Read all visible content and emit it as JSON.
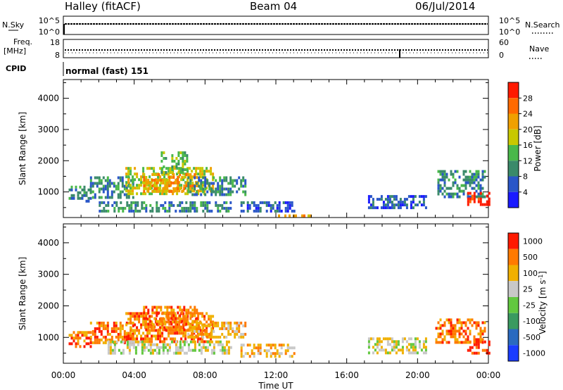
{
  "header": {
    "title_left": "Halley (fitACF)",
    "title_center": "Beam 04",
    "title_right": "06/Jul/2014"
  },
  "top_panels": {
    "nsky_label": "N.Sky",
    "nsearch_label": "N.Search",
    "nsky_ticks": [
      "10^5",
      "10^0"
    ],
    "nsearch_ticks": [
      "10^5",
      "10^0"
    ],
    "freq_label_1": "Freq.",
    "freq_label_2": "[MHz]",
    "freq_ticks": [
      "18",
      "8"
    ],
    "nave_label": "Nave",
    "nave_ticks": [
      "60",
      "0"
    ],
    "cpid_label": "CPID",
    "cpid_value": "normal (fast) 151"
  },
  "chart_data": [
    {
      "type": "heatmap",
      "name": "power-panel",
      "ylabel": "Slant Range [km]",
      "y_ticks": [
        1000,
        2000,
        3000,
        4000
      ],
      "ylim": [
        180,
        4600
      ],
      "xlim": [
        0,
        24
      ],
      "colorbar_label": "Power [dB]",
      "colorbar_ticks": [
        "4",
        "8",
        "12",
        "16",
        "20",
        "24",
        "28"
      ],
      "colorbar_colors": [
        "#1a1aff",
        "#2a56c8",
        "#3a8a6a",
        "#49b84a",
        "#c8c800",
        "#f0a000",
        "#ff6a00",
        "#ff1a00"
      ],
      "regions": [
        {
          "t0": 0.3,
          "t1": 1.5,
          "r0": 700,
          "r1": 1200,
          "level": 2
        },
        {
          "t0": 1.5,
          "t1": 4.0,
          "r0": 800,
          "r1": 1500,
          "level": 2
        },
        {
          "t0": 3.5,
          "t1": 8.5,
          "r0": 900,
          "r1": 1800,
          "level": 4
        },
        {
          "t0": 4.5,
          "t1": 7.5,
          "r0": 1000,
          "r1": 1600,
          "level": 5
        },
        {
          "t0": 5.5,
          "t1": 7.0,
          "r0": 1600,
          "r1": 2300,
          "level": 3
        },
        {
          "t0": 7.0,
          "t1": 10.3,
          "r0": 900,
          "r1": 1500,
          "level": 2
        },
        {
          "t0": 2.0,
          "t1": 9.5,
          "r0": 400,
          "r1": 700,
          "level": 2
        },
        {
          "t0": 10.0,
          "t1": 13.0,
          "r0": 400,
          "r1": 700,
          "level": 1
        },
        {
          "t0": 12.0,
          "t1": 14.0,
          "r0": 200,
          "r1": 280,
          "level": 5
        },
        {
          "t0": 17.2,
          "t1": 20.5,
          "r0": 500,
          "r1": 900,
          "level": 1
        },
        {
          "t0": 21.0,
          "t1": 23.8,
          "r0": 800,
          "r1": 1700,
          "level": 2
        },
        {
          "t0": 22.8,
          "t1": 24.0,
          "r0": 600,
          "r1": 1000,
          "level": 7
        }
      ]
    },
    {
      "type": "heatmap",
      "name": "velocity-panel",
      "ylabel": "Slant Range [km]",
      "y_ticks": [
        1000,
        2000,
        3000,
        4000
      ],
      "ylim": [
        180,
        4600
      ],
      "xlim": [
        0,
        24
      ],
      "x_ticks": [
        "00:00",
        "04:00",
        "08:00",
        "12:00",
        "16:00",
        "20:00",
        "00:00"
      ],
      "xlabel": "Time UT",
      "colorbar_label": "Velocity [m s^-1]",
      "colorbar_ticks": [
        "1000",
        "500",
        "100",
        "25",
        "-25",
        "-100",
        "-500",
        "-1000"
      ],
      "colorbar_colors": [
        "#1a3cff",
        "#2a6ac0",
        "#3a9a60",
        "#62c840",
        "#c8c8c8",
        "#f0b000",
        "#ff7a00",
        "#ff1a00"
      ],
      "regions": [
        {
          "t0": 0.3,
          "t1": 1.5,
          "r0": 700,
          "r1": 1200,
          "level": 6
        },
        {
          "t0": 1.5,
          "t1": 4.0,
          "r0": 800,
          "r1": 1500,
          "level": 6
        },
        {
          "t0": 3.5,
          "t1": 8.5,
          "r0": 900,
          "r1": 1800,
          "level": 6
        },
        {
          "t0": 4.5,
          "t1": 7.5,
          "r0": 1200,
          "r1": 2000,
          "level": 6
        },
        {
          "t0": 7.0,
          "t1": 10.3,
          "r0": 1000,
          "r1": 1500,
          "level": 5
        },
        {
          "t0": 2.5,
          "t1": 9.5,
          "r0": 500,
          "r1": 900,
          "level": 4
        },
        {
          "t0": 10.0,
          "t1": 13.0,
          "r0": 400,
          "r1": 800,
          "level": 5
        },
        {
          "t0": 17.2,
          "t1": 20.5,
          "r0": 500,
          "r1": 1000,
          "level": 4
        },
        {
          "t0": 21.0,
          "t1": 23.8,
          "r0": 800,
          "r1": 1600,
          "level": 6
        },
        {
          "t0": 22.8,
          "t1": 24.0,
          "r0": 500,
          "r1": 900,
          "level": 7
        }
      ]
    }
  ]
}
